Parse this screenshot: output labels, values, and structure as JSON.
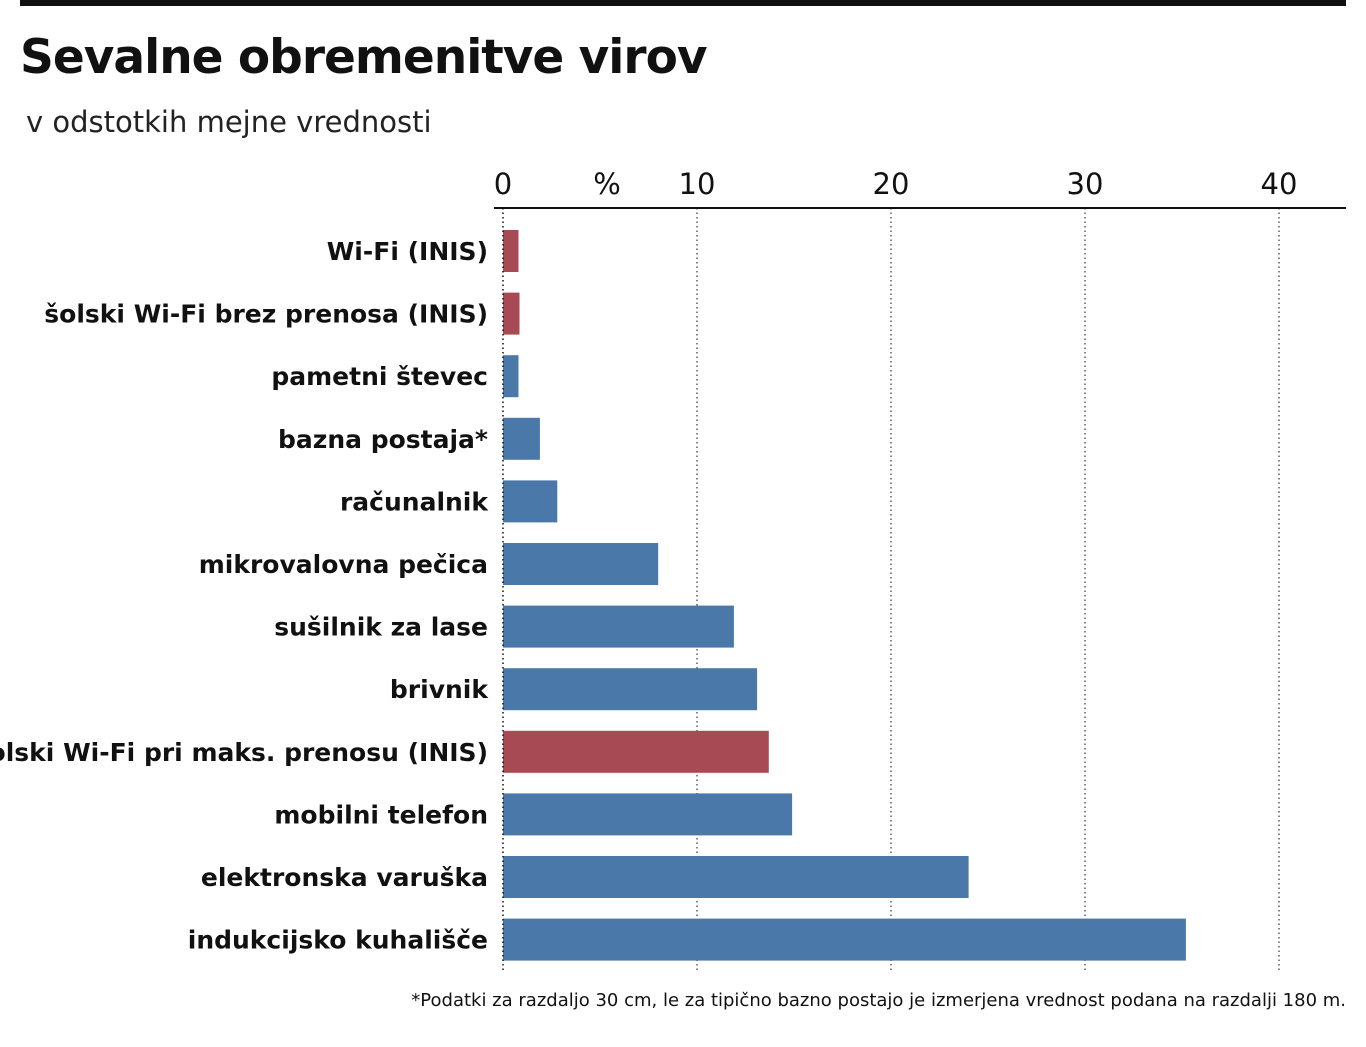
{
  "title": "Sevalne obremenitve virov",
  "subtitle": "v odstotkih mejne vrednosti",
  "footnote": "*Podatki za razdaljo 30 cm, le za tipično bazno postajo je izmerjena vrednost podana na razdalji 180 m.",
  "colors": {
    "inis": "#a84a54",
    "other": "#4a79a9",
    "axis": "#111111",
    "grid": "#444444"
  },
  "chart_data": {
    "type": "bar",
    "orientation": "horizontal",
    "title": "Sevalne obremenitve virov",
    "subtitle": "v odstotkih mejne vrednosti",
    "unit_label": "%",
    "xlim": [
      0,
      43
    ],
    "ticks": [
      0,
      10,
      20,
      30,
      40
    ],
    "tick_labels": [
      "0",
      "10",
      "20",
      "30",
      "40"
    ],
    "grid": "vertical dotted",
    "categories": [
      "Wi-Fi (INIS)",
      "šolski Wi-Fi brez prenosa (INIS)",
      "pametni števec",
      "bazna postaja*",
      "računalnik",
      "mikrovalovna pečica",
      "sušilnik za lase",
      "brivnik",
      "šolski Wi-Fi pri maks. prenosu (INIS)",
      "mobilni telefon",
      "elektronska varuška",
      "indukcijsko kuhališče"
    ],
    "values": [
      0.8,
      0.85,
      0.8,
      1.9,
      2.8,
      8.0,
      11.9,
      13.1,
      13.7,
      14.9,
      24.0,
      35.2
    ],
    "highlight": [
      true,
      true,
      false,
      false,
      false,
      false,
      false,
      false,
      true,
      false,
      false,
      false
    ]
  }
}
